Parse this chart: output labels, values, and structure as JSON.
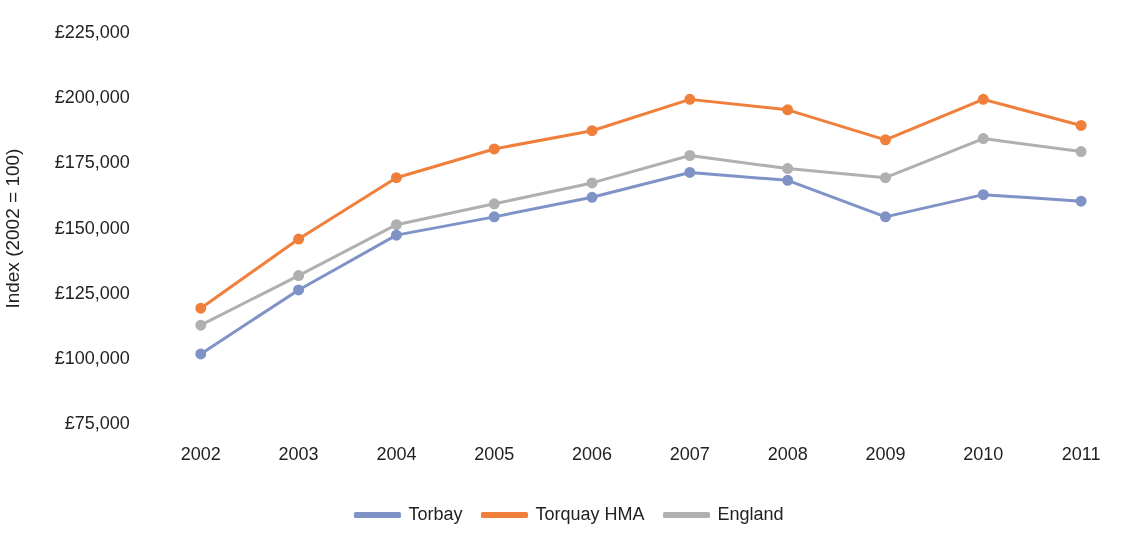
{
  "chart_data": {
    "type": "line",
    "ylabel": "Index (2002 = 100)",
    "categories": [
      "2002",
      "2003",
      "2004",
      "2005",
      "2006",
      "2007",
      "2008",
      "2009",
      "2010",
      "2011"
    ],
    "series": [
      {
        "name": "Torbay",
        "color": "#7f93c6",
        "values": [
          102000,
          126500,
          147500,
          154500,
          162000,
          171500,
          168500,
          154500,
          163000,
          160500
        ]
      },
      {
        "name": "Torquay HMA",
        "color": "#ef7f3a",
        "values": [
          119500,
          146000,
          169500,
          180500,
          187500,
          199500,
          195500,
          184000,
          199500,
          189500
        ]
      },
      {
        "name": "England",
        "color": "#b0b0b0",
        "values": [
          113000,
          132000,
          151500,
          159500,
          167500,
          178000,
          173000,
          169500,
          184500,
          179500
        ]
      }
    ],
    "ylim": [
      75000,
      225000
    ],
    "yticks": [
      {
        "value": 75000,
        "label": "£75,000"
      },
      {
        "value": 100000,
        "label": "£100,000"
      },
      {
        "value": 125000,
        "label": "£125,000"
      },
      {
        "value": 150000,
        "label": "£150,000"
      },
      {
        "value": 175000,
        "label": "£175,000"
      },
      {
        "value": 200000,
        "label": "£200,000"
      },
      {
        "value": 225000,
        "label": "£225,000"
      }
    ],
    "grid": false,
    "legend": "bottom",
    "marker": "circle",
    "line_style": "solid"
  }
}
